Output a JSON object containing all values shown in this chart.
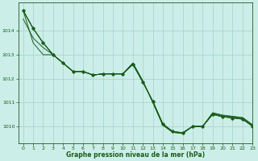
{
  "title": "Graphe pression niveau de la mer (hPa)",
  "bg_color": "#cceee8",
  "grid_color": "#aad4ce",
  "line_color": "#1a5c1a",
  "xlim": [
    -0.5,
    23
  ],
  "ylim": [
    1009.3,
    1015.2
  ],
  "yticks": [
    1010,
    1011,
    1012,
    1013,
    1014
  ],
  "xticks": [
    0,
    1,
    2,
    3,
    4,
    5,
    6,
    7,
    8,
    9,
    10,
    11,
    12,
    13,
    14,
    15,
    16,
    17,
    18,
    19,
    20,
    21,
    22,
    23
  ],
  "series": [
    [
      1014.85,
      1014.1,
      1013.5,
      1013.0,
      1012.65,
      1012.3,
      1012.3,
      1012.15,
      1012.2,
      1012.2,
      1012.2,
      1012.6,
      1011.85,
      1011.05,
      1010.1,
      1009.78,
      1009.73,
      1010.0,
      1010.0,
      1010.5,
      1010.4,
      1010.35,
      1010.3,
      1010.0
    ],
    [
      1014.85,
      1014.1,
      1013.5,
      1013.0,
      1012.65,
      1012.3,
      1012.3,
      1012.15,
      1012.2,
      1012.2,
      1012.2,
      1012.6,
      1011.85,
      1011.05,
      1010.1,
      1009.78,
      1009.73,
      1010.0,
      1010.0,
      1010.52,
      1010.42,
      1010.37,
      1010.32,
      1010.02
    ],
    [
      1014.85,
      1013.5,
      1013.0,
      1013.0,
      1012.65,
      1012.3,
      1012.3,
      1012.15,
      1012.2,
      1012.2,
      1012.2,
      1012.65,
      1011.9,
      1011.0,
      1010.05,
      1009.75,
      1009.7,
      1010.0,
      1010.0,
      1010.55,
      1010.45,
      1010.4,
      1010.35,
      1010.05
    ],
    [
      1014.5,
      1013.7,
      1013.3,
      1013.0,
      1012.65,
      1012.3,
      1012.3,
      1012.15,
      1012.2,
      1012.2,
      1012.2,
      1012.65,
      1011.9,
      1011.0,
      1010.05,
      1009.75,
      1009.7,
      1010.0,
      1010.0,
      1010.57,
      1010.47,
      1010.42,
      1010.37,
      1010.07
    ]
  ],
  "marker_series": {
    "x": [
      0,
      1,
      2,
      3,
      4,
      5,
      6,
      7,
      8,
      9,
      10,
      11,
      12,
      13,
      14,
      15,
      16,
      17,
      18,
      19,
      20,
      21,
      22,
      23
    ],
    "y": [
      1014.85,
      1014.1,
      1013.5,
      1013.0,
      1012.65,
      1012.3,
      1012.3,
      1012.15,
      1012.2,
      1012.2,
      1012.2,
      1012.6,
      1011.85,
      1011.05,
      1010.1,
      1009.78,
      1009.73,
      1010.0,
      1010.0,
      1010.5,
      1010.4,
      1010.35,
      1010.3,
      1010.0
    ]
  }
}
